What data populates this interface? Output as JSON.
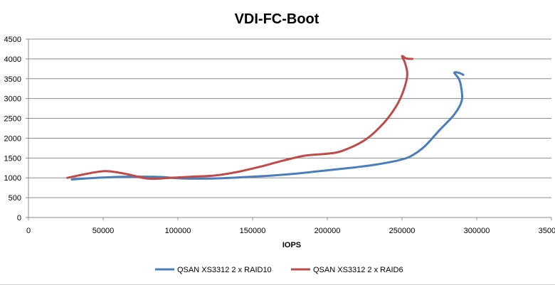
{
  "chart_data": {
    "type": "line",
    "title": "VDI-FC-Boot",
    "xlabel": "IOPS",
    "ylabel": "",
    "xlim": [
      0,
      350000
    ],
    "ylim": [
      0,
      4500
    ],
    "x_ticks": [
      "0",
      "50000",
      "100000",
      "150000",
      "200000",
      "250000",
      "300000",
      "350000"
    ],
    "y_ticks": [
      "0",
      "500",
      "1000",
      "1500",
      "2000",
      "2500",
      "3000",
      "3500",
      "4000",
      "4500"
    ],
    "grid": true,
    "legend_position": "bottom",
    "series": [
      {
        "name": "QSAN XS3312 2 x RAID10",
        "color": "#4a7ebb",
        "points": [
          [
            29000,
            960
          ],
          [
            50000,
            1010
          ],
          [
            70000,
            1030
          ],
          [
            90000,
            1020
          ],
          [
            100000,
            990
          ],
          [
            120000,
            980
          ],
          [
            140000,
            1010
          ],
          [
            160000,
            1050
          ],
          [
            180000,
            1110
          ],
          [
            200000,
            1190
          ],
          [
            215000,
            1250
          ],
          [
            230000,
            1320
          ],
          [
            245000,
            1420
          ],
          [
            255000,
            1530
          ],
          [
            265000,
            1790
          ],
          [
            275000,
            2200
          ],
          [
            285000,
            2600
          ],
          [
            290000,
            2950
          ],
          [
            289500,
            3300
          ],
          [
            288000,
            3500
          ],
          [
            285000,
            3650
          ],
          [
            288000,
            3650
          ],
          [
            291000,
            3600
          ]
        ]
      },
      {
        "name": "QSAN XS3312 2 x RAID6",
        "color": "#be4b48",
        "points": [
          [
            26000,
            1000
          ],
          [
            40000,
            1110
          ],
          [
            52000,
            1170
          ],
          [
            65000,
            1100
          ],
          [
            80000,
            980
          ],
          [
            95000,
            1000
          ],
          [
            110000,
            1030
          ],
          [
            125000,
            1060
          ],
          [
            140000,
            1150
          ],
          [
            155000,
            1280
          ],
          [
            170000,
            1430
          ],
          [
            185000,
            1560
          ],
          [
            200000,
            1610
          ],
          [
            210000,
            1680
          ],
          [
            225000,
            1950
          ],
          [
            237000,
            2350
          ],
          [
            246000,
            2800
          ],
          [
            251000,
            3200
          ],
          [
            253500,
            3600
          ],
          [
            252000,
            3900
          ],
          [
            250000,
            4070
          ],
          [
            253000,
            4010
          ],
          [
            257000,
            4000
          ]
        ]
      }
    ]
  }
}
